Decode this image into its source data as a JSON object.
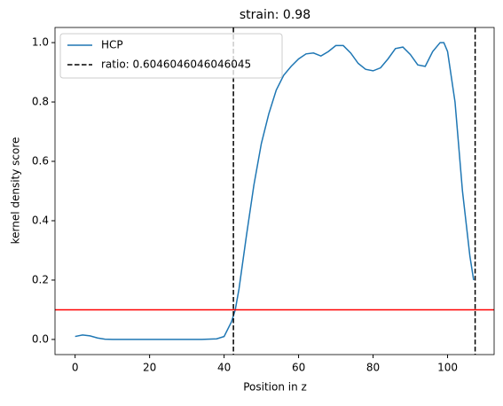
{
  "chart_data": {
    "type": "line",
    "title": "strain: 0.98",
    "xlabel": "Position in z",
    "ylabel": "kernel density score",
    "x": [
      0,
      2,
      4,
      6,
      8,
      10,
      14,
      18,
      22,
      26,
      30,
      34,
      38,
      40,
      42,
      43,
      44,
      46,
      48,
      50,
      52,
      54,
      56,
      58,
      60,
      62,
      64,
      66,
      68,
      70,
      72,
      74,
      76,
      78,
      80,
      82,
      84,
      86,
      88,
      90,
      92,
      94,
      96,
      98,
      99,
      100,
      102,
      104,
      106,
      107
    ],
    "series": [
      {
        "name": "HCP",
        "color": "#1f77b4",
        "values": [
          0.01,
          0.015,
          0.012,
          0.005,
          0.001,
          0,
          0,
          0,
          0,
          0,
          0,
          0,
          0.002,
          0.01,
          0.06,
          0.1,
          0.17,
          0.35,
          0.52,
          0.66,
          0.76,
          0.84,
          0.89,
          0.92,
          0.945,
          0.962,
          0.965,
          0.955,
          0.97,
          0.99,
          0.99,
          0.965,
          0.93,
          0.91,
          0.905,
          0.915,
          0.945,
          0.98,
          0.985,
          0.96,
          0.925,
          0.92,
          0.97,
          1.0,
          1.0,
          0.97,
          0.8,
          0.5,
          0.28,
          0.2
        ]
      }
    ],
    "vlines": {
      "name": "ratio: 0.6046046046046045",
      "color": "#000000",
      "values": [
        42.5,
        107.4
      ]
    },
    "hlines": {
      "color": "#ff0000",
      "values": [
        0.1
      ]
    },
    "xlim": [
      -5.4,
      112.5
    ],
    "ylim": [
      -0.051,
      1.051
    ],
    "xticks": [
      0,
      20,
      40,
      60,
      80,
      100
    ],
    "yticks": [
      {
        "value": 0,
        "label": "0.0"
      },
      {
        "value": 0.2,
        "label": "0.2"
      },
      {
        "value": 0.4,
        "label": "0.4"
      },
      {
        "value": 0.6,
        "label": "0.6"
      },
      {
        "value": 0.8,
        "label": "0.8"
      },
      {
        "value": 1.0,
        "label": "1.0"
      }
    ],
    "legend": "upper left"
  }
}
